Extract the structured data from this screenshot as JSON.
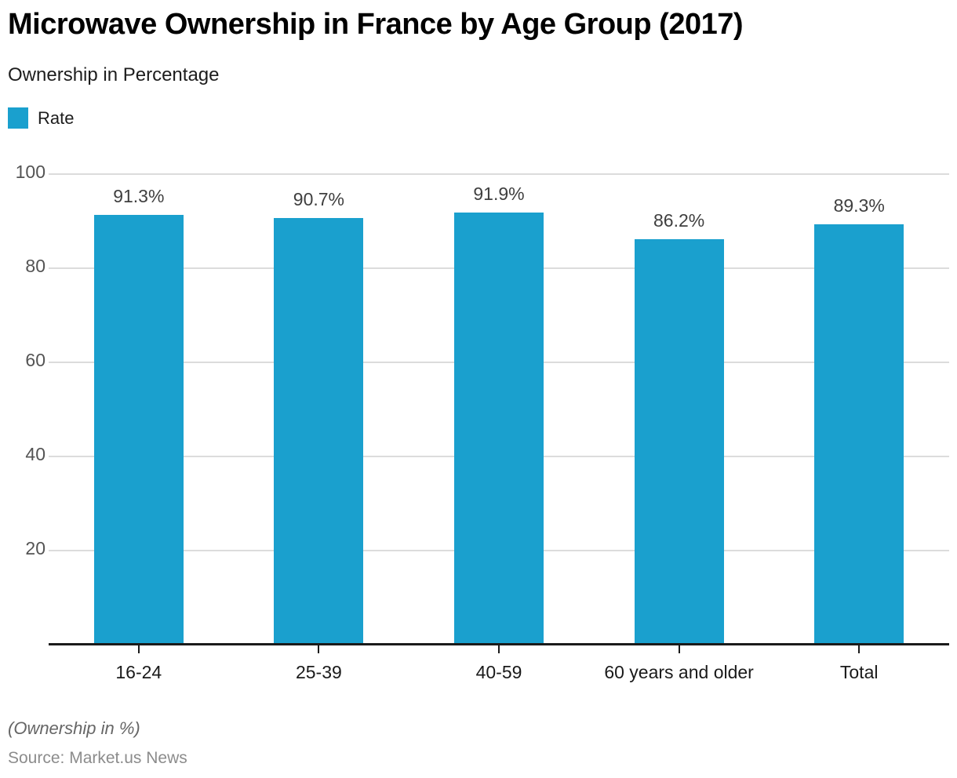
{
  "title": "Microwave Ownership in France by Age Group (2017)",
  "subtitle": "Ownership in Percentage",
  "legend": {
    "label": "Rate"
  },
  "footer": {
    "note": "(Ownership in %)",
    "source": "Source: Market.us News"
  },
  "colors": {
    "bar": "#1aa0ce",
    "grid": "#dcdcdc",
    "axis": "#1a1a1a",
    "y_tick_label": "#545454",
    "value_label": "#3f3f3f",
    "category_label": "#1a1a1a"
  },
  "chart_data": {
    "type": "bar",
    "title": "Microwave Ownership in France by Age Group (2017)",
    "subtitle": "Ownership in Percentage",
    "categories": [
      "16-24",
      "25-39",
      "40-59",
      "60 years and older",
      "Total"
    ],
    "series": [
      {
        "name": "Rate",
        "values": [
          91.3,
          90.7,
          91.9,
          86.2,
          89.3
        ],
        "value_labels": [
          "91.3%",
          "90.7%",
          "91.9%",
          "86.2%",
          "89.3%"
        ]
      }
    ],
    "xlabel": "",
    "ylabel": "Ownership in Percentage",
    "ylim": [
      0,
      100
    ],
    "yticks": [
      20,
      40,
      60,
      80,
      100
    ],
    "grid": true,
    "legend_position": "top-left",
    "footnote": "(Ownership in %)",
    "source": "Source: Market.us News"
  }
}
